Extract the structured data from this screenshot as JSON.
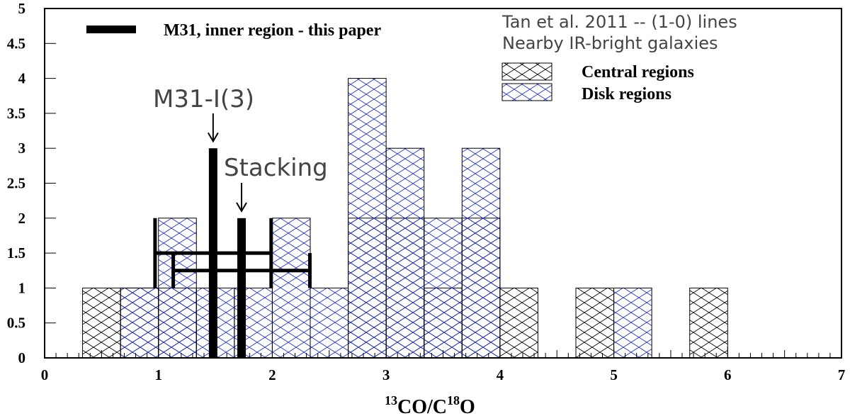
{
  "chart_data": {
    "type": "bar",
    "title": "",
    "xlabel": {
      "sup1": "13",
      "mid": "CO/C",
      "sup2": "18",
      "end": "O"
    },
    "ylabel": "",
    "xlim": [
      0,
      7
    ],
    "ylim": [
      0,
      5
    ],
    "x_ticks": [
      "0",
      "1",
      "2",
      "3",
      "4",
      "5",
      "6",
      "7"
    ],
    "y_ticks": [
      "0",
      "0.5",
      "1",
      "1.5",
      "2",
      "2.5",
      "3",
      "3.5",
      "4",
      "4.5",
      "5"
    ],
    "bin_width": 0.3333,
    "series": [
      {
        "name": "Central regions",
        "color": "#000000",
        "bins": [
          {
            "x0": 0.3333,
            "x1": 0.6667,
            "value": 1
          },
          {
            "x0": 0.6667,
            "x1": 1.0,
            "value": 1
          },
          {
            "x0": 1.0,
            "x1": 1.3333,
            "value": 1
          },
          {
            "x0": 2.6667,
            "x1": 3.0,
            "value": 2
          },
          {
            "x0": 3.0,
            "x1": 3.3333,
            "value": 2
          },
          {
            "x0": 3.3333,
            "x1": 3.6667,
            "value": 1
          },
          {
            "x0": 3.6667,
            "x1": 4.0,
            "value": 2
          },
          {
            "x0": 4.0,
            "x1": 4.3333,
            "value": 1
          },
          {
            "x0": 4.6667,
            "x1": 5.0,
            "value": 1
          },
          {
            "x0": 5.6667,
            "x1": 6.0,
            "value": 1
          }
        ]
      },
      {
        "name": "Disk regions",
        "color": "#1f2fd0",
        "bins": [
          {
            "x0": 0.6667,
            "x1": 1.0,
            "value": 1
          },
          {
            "x0": 1.0,
            "x1": 1.3333,
            "value": 2
          },
          {
            "x0": 1.3333,
            "x1": 1.6667,
            "value": 1
          },
          {
            "x0": 1.6667,
            "x1": 2.0,
            "value": 1
          },
          {
            "x0": 2.0,
            "x1": 2.3333,
            "value": 2
          },
          {
            "x0": 2.3333,
            "x1": 2.6667,
            "value": 1
          },
          {
            "x0": 2.6667,
            "x1": 3.0,
            "value": 4
          },
          {
            "x0": 3.0,
            "x1": 3.3333,
            "value": 3
          },
          {
            "x0": 3.3333,
            "x1": 3.6667,
            "value": 2
          },
          {
            "x0": 3.6667,
            "x1": 4.0,
            "value": 3
          },
          {
            "x0": 5.0,
            "x1": 5.3333,
            "value": 1
          }
        ]
      },
      {
        "name": "M31, inner region - this paper",
        "color": "#000000",
        "bars": [
          {
            "label": "M31-I(3)",
            "x": 1.48,
            "value": 3,
            "err_xlo": 0.97,
            "err_xhi": 1.99,
            "err_ylo": 1.0,
            "err_yhi": 2.0,
            "err_at_y": 1.5
          },
          {
            "label": "Stacking",
            "x": 1.73,
            "value": 2,
            "err_xlo": 1.13,
            "err_xhi": 2.33,
            "err_ylo": 1.0,
            "err_yhi": 1.5,
            "err_at_y": 1.25
          }
        ]
      }
    ],
    "legend": {
      "header_line1": "Tan et al. 2011 -- (1-0) lines",
      "header_line2": "Nearby IR-bright galaxies",
      "entries": [
        "Central regions",
        "Disk regions"
      ],
      "m31_entry": "M31, inner region - this paper",
      "position": "top-right"
    },
    "annotations": [
      {
        "text": "M31-I(3)",
        "arrow_x": 1.48,
        "arrow_to_y": 3.1
      },
      {
        "text": "Stacking",
        "arrow_x": 1.73,
        "arrow_to_y": 2.1
      }
    ]
  }
}
